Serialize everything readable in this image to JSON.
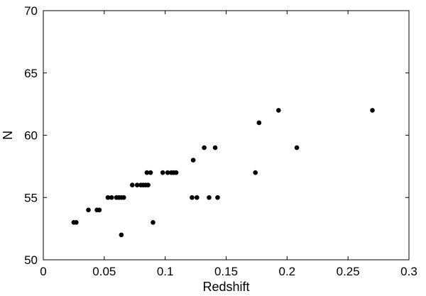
{
  "chart_data": {
    "type": "scatter",
    "title": "",
    "xlabel": "Redshift",
    "ylabel": "N",
    "xlim": [
      0,
      0.3
    ],
    "ylim": [
      50,
      70
    ],
    "xticks": [
      "0",
      "0.05",
      "0.1",
      "0.15",
      "0.2",
      "0.25",
      "0.3"
    ],
    "yticks": [
      "50",
      "55",
      "60",
      "65",
      "70"
    ],
    "grid": false,
    "marker_color": "#000000",
    "points": [
      [
        0.025,
        53
      ],
      [
        0.027,
        53
      ],
      [
        0.037,
        54
      ],
      [
        0.044,
        54
      ],
      [
        0.046,
        54
      ],
      [
        0.053,
        55
      ],
      [
        0.056,
        55
      ],
      [
        0.06,
        55
      ],
      [
        0.062,
        55
      ],
      [
        0.064,
        55
      ],
      [
        0.066,
        55
      ],
      [
        0.064,
        52
      ],
      [
        0.073,
        56
      ],
      [
        0.077,
        56
      ],
      [
        0.08,
        56
      ],
      [
        0.082,
        56
      ],
      [
        0.084,
        56
      ],
      [
        0.086,
        56
      ],
      [
        0.085,
        57
      ],
      [
        0.088,
        57
      ],
      [
        0.09,
        53
      ],
      [
        0.098,
        57
      ],
      [
        0.102,
        57
      ],
      [
        0.105,
        57
      ],
      [
        0.107,
        57
      ],
      [
        0.109,
        57
      ],
      [
        0.122,
        55
      ],
      [
        0.126,
        55
      ],
      [
        0.123,
        58
      ],
      [
        0.132,
        59
      ],
      [
        0.141,
        59
      ],
      [
        0.136,
        55
      ],
      [
        0.143,
        55
      ],
      [
        0.174,
        57
      ],
      [
        0.177,
        61
      ],
      [
        0.193,
        62
      ],
      [
        0.208,
        59
      ],
      [
        0.27,
        62
      ]
    ]
  }
}
